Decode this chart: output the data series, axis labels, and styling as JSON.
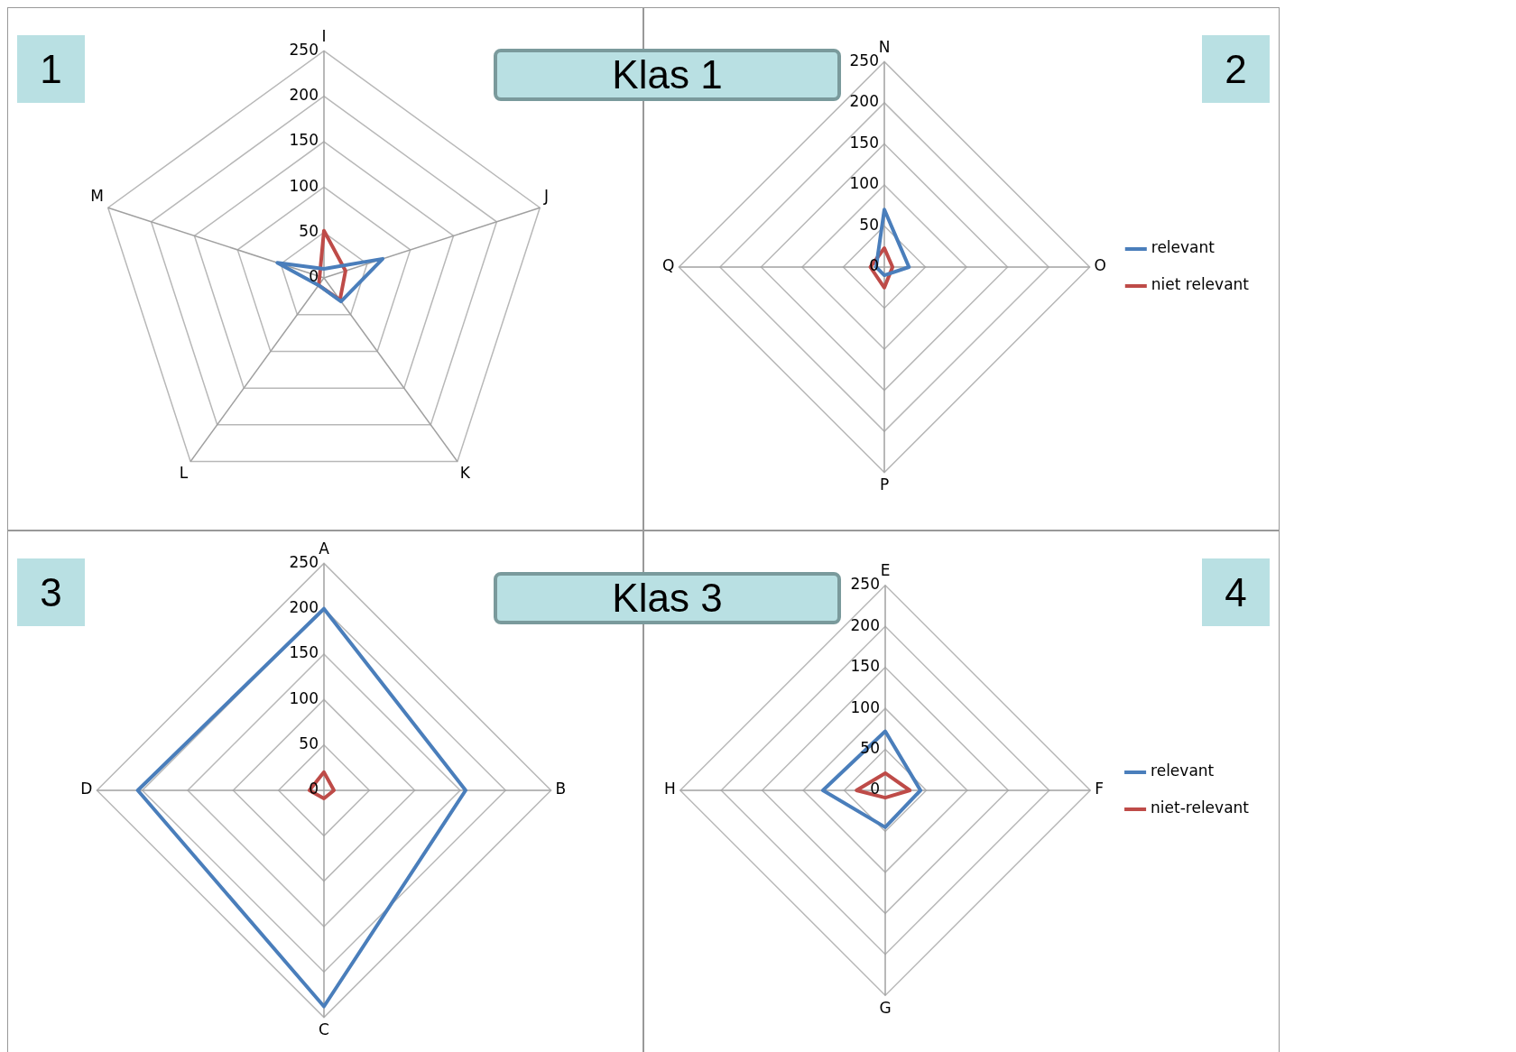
{
  "chart_data": [
    {
      "type": "radar",
      "title": "1",
      "subtitle": "Klas 1",
      "categories": [
        "I",
        "J",
        "K",
        "L",
        "M"
      ],
      "ylim": [
        0,
        250
      ],
      "yticks": [
        0,
        50,
        100,
        150,
        200,
        250
      ],
      "grid": true,
      "marker": "none",
      "legend": false,
      "series": [
        {
          "color": "#4a7ebb",
          "values": [
            10,
            68,
            32,
            10,
            54
          ]
        },
        {
          "color": "#be4b48",
          "values": [
            52,
            25,
            30,
            10,
            5
          ]
        }
      ]
    },
    {
      "type": "radar",
      "title": "2",
      "categories": [
        "N",
        "O",
        "P",
        "Q"
      ],
      "ylim": [
        0,
        250
      ],
      "yticks": [
        0,
        50,
        100,
        150,
        200,
        250
      ],
      "grid": true,
      "marker": "none",
      "legend": "right",
      "series": [
        {
          "name": "relevant",
          "color": "#4a7ebb",
          "values": [
            70,
            30,
            10,
            10
          ]
        },
        {
          "name": "niet relevant",
          "color": "#be4b48",
          "values": [
            23,
            10,
            25,
            17
          ]
        }
      ]
    },
    {
      "type": "radar",
      "title": "3",
      "subtitle": "Klas 3",
      "categories": [
        "A",
        "B",
        "C",
        "D"
      ],
      "ylim": [
        0,
        250
      ],
      "yticks": [
        0,
        50,
        100,
        150,
        200,
        250
      ],
      "grid": true,
      "marker": "none",
      "legend": false,
      "series": [
        {
          "color": "#4a7ebb",
          "values": [
            200,
            156,
            238,
            205
          ]
        },
        {
          "color": "#be4b48",
          "values": [
            20,
            11,
            9,
            16
          ]
        }
      ]
    },
    {
      "type": "radar",
      "title": "4",
      "categories": [
        "E",
        "F",
        "G",
        "H"
      ],
      "ylim": [
        0,
        250
      ],
      "yticks": [
        0,
        50,
        100,
        150,
        200,
        250
      ],
      "grid": true,
      "marker": "none",
      "legend": "right",
      "series": [
        {
          "name": "relevant",
          "color": "#4a7ebb",
          "values": [
            72,
            43,
            45,
            76
          ]
        },
        {
          "name": "niet-relevant",
          "color": "#be4b48",
          "values": [
            21,
            30,
            9,
            35
          ]
        }
      ]
    }
  ]
}
